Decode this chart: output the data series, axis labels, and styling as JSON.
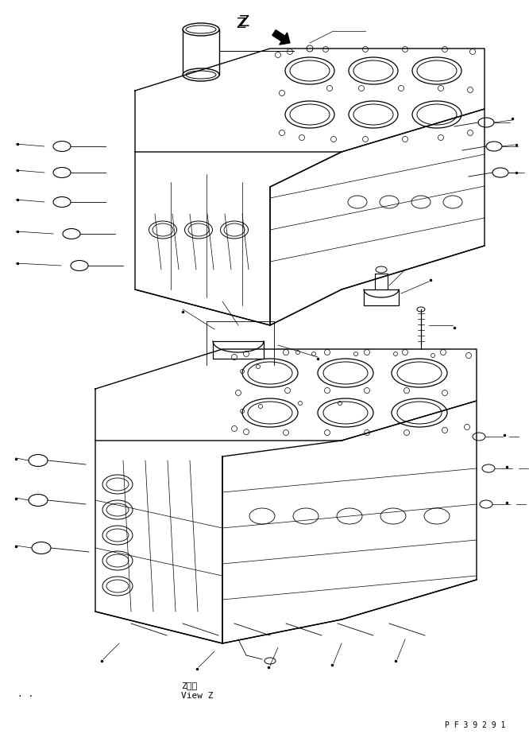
{
  "background_color": "#ffffff",
  "line_color": "#000000",
  "figure_width": 6.66,
  "figure_height": 9.29,
  "dpi": 100,
  "label_z": "Z",
  "label_view_z_jp": "Z　視",
  "label_view_z_en": "View Z",
  "label_pf": "P F 3 9 2 9 1"
}
